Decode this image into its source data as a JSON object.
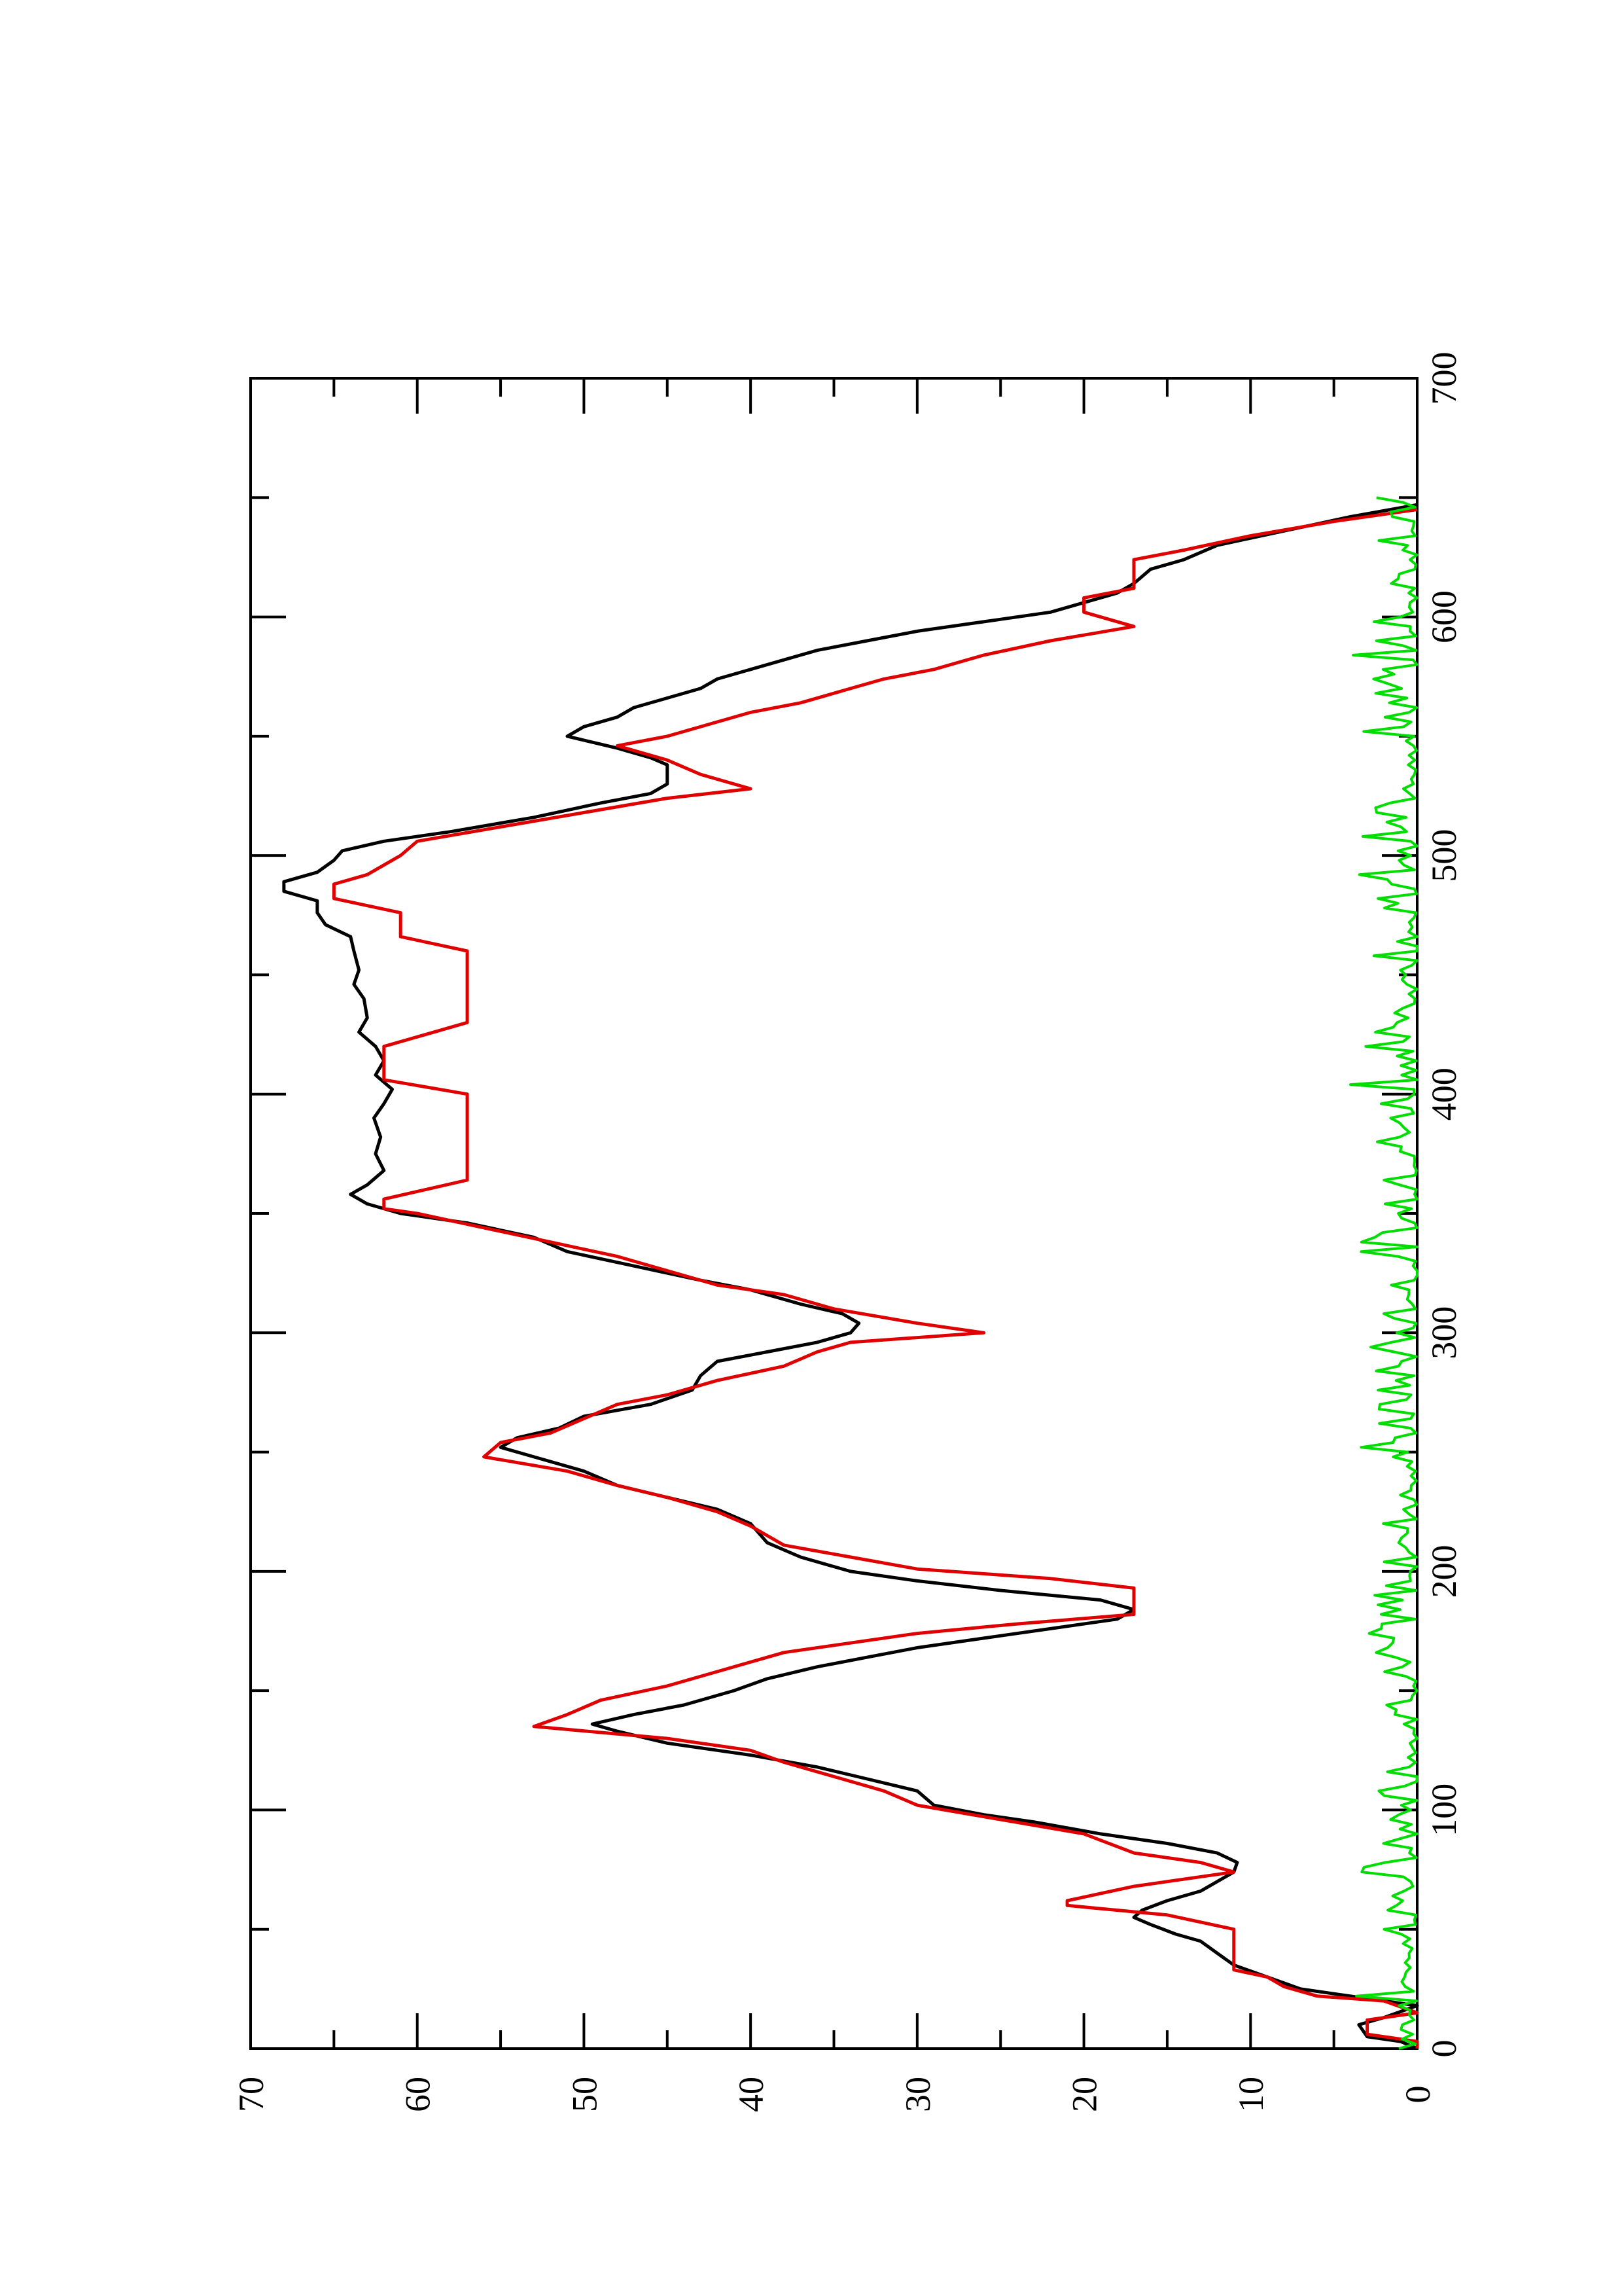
{
  "chart_data": {
    "type": "line",
    "title": "",
    "xlabel": "",
    "ylabel": "",
    "rotation_deg": 90,
    "xlim": [
      0,
      700
    ],
    "ylim": [
      0,
      70
    ],
    "x_ticks": [
      0,
      100,
      200,
      300,
      400,
      500,
      600,
      700
    ],
    "y_ticks": [
      0,
      10,
      20,
      30,
      40,
      50,
      60,
      70
    ],
    "x_minor_step": 50,
    "y_minor_step": 5,
    "grid": false,
    "legend": "none",
    "series": [
      {
        "color": "#000000",
        "style": "smooth",
        "points": [
          [
            0,
            0
          ],
          [
            3,
            1
          ],
          [
            5,
            3
          ],
          [
            10,
            3.5
          ],
          [
            13,
            2
          ],
          [
            18,
            0
          ],
          [
            22,
            4
          ],
          [
            25,
            7
          ],
          [
            30,
            9
          ],
          [
            35,
            11
          ],
          [
            40,
            12
          ],
          [
            45,
            13
          ],
          [
            48,
            14.5
          ],
          [
            52,
            16
          ],
          [
            55,
            17
          ],
          [
            58,
            16.5
          ],
          [
            62,
            15
          ],
          [
            66,
            13
          ],
          [
            70,
            12
          ],
          [
            74,
            11
          ],
          [
            78,
            10.8
          ],
          [
            82,
            12
          ],
          [
            86,
            15
          ],
          [
            90,
            19
          ],
          [
            95,
            23
          ],
          [
            98,
            26
          ],
          [
            102,
            29
          ],
          [
            108,
            30
          ],
          [
            113,
            33
          ],
          [
            118,
            36
          ],
          [
            123,
            40
          ],
          [
            128,
            45
          ],
          [
            133,
            48
          ],
          [
            136,
            49.5
          ],
          [
            140,
            47
          ],
          [
            144,
            44
          ],
          [
            150,
            41
          ],
          [
            155,
            39
          ],
          [
            160,
            36
          ],
          [
            164,
            33
          ],
          [
            168,
            30
          ],
          [
            172,
            26
          ],
          [
            176,
            22
          ],
          [
            180,
            18
          ],
          [
            184,
            17
          ],
          [
            188,
            19
          ],
          [
            192,
            25
          ],
          [
            196,
            30
          ],
          [
            200,
            34
          ],
          [
            206,
            37
          ],
          [
            212,
            39
          ],
          [
            220,
            40
          ],
          [
            226,
            42
          ],
          [
            231,
            45
          ],
          [
            236,
            48
          ],
          [
            242,
            50
          ],
          [
            248,
            53
          ],
          [
            252,
            55
          ],
          [
            256,
            54
          ],
          [
            260,
            51.5
          ],
          [
            265,
            50
          ],
          [
            270,
            46
          ],
          [
            276,
            43.5
          ],
          [
            282,
            43
          ],
          [
            288,
            42
          ],
          [
            292,
            39
          ],
          [
            296,
            36
          ],
          [
            300,
            34
          ],
          [
            304,
            33.5
          ],
          [
            308,
            34.5
          ],
          [
            312,
            37
          ],
          [
            318,
            40
          ],
          [
            322,
            43
          ],
          [
            328,
            47
          ],
          [
            334,
            51
          ],
          [
            340,
            53
          ],
          [
            346,
            57
          ],
          [
            350,
            61
          ],
          [
            354,
            63
          ],
          [
            358,
            64
          ],
          [
            362,
            63
          ],
          [
            368,
            62
          ],
          [
            375,
            62.5
          ],
          [
            382,
            62.2
          ],
          [
            390,
            62.6
          ],
          [
            396,
            62
          ],
          [
            402,
            61.5
          ],
          [
            408,
            62.5
          ],
          [
            414,
            62
          ],
          [
            420,
            62.5
          ],
          [
            426,
            63.5
          ],
          [
            432,
            63
          ],
          [
            440,
            63.2
          ],
          [
            446,
            63.8
          ],
          [
            452,
            63.5
          ],
          [
            460,
            63.8
          ],
          [
            466,
            64
          ],
          [
            471,
            65.5
          ],
          [
            476,
            66
          ],
          [
            481,
            66
          ],
          [
            485,
            68
          ],
          [
            489,
            68
          ],
          [
            493,
            66
          ],
          [
            498,
            65
          ],
          [
            502,
            64.5
          ],
          [
            506,
            62
          ],
          [
            510,
            58
          ],
          [
            516,
            53
          ],
          [
            522,
            49
          ],
          [
            526,
            46
          ],
          [
            530,
            45
          ],
          [
            538,
            45
          ],
          [
            541,
            46
          ],
          [
            545,
            48
          ],
          [
            550,
            51
          ],
          [
            554,
            50
          ],
          [
            558,
            48
          ],
          [
            562,
            47
          ],
          [
            566,
            45
          ],
          [
            570,
            43
          ],
          [
            574,
            42
          ],
          [
            578,
            40
          ],
          [
            582,
            38
          ],
          [
            586,
            36
          ],
          [
            590,
            33
          ],
          [
            594,
            30
          ],
          [
            598,
            26
          ],
          [
            602,
            22
          ],
          [
            606,
            20
          ],
          [
            610,
            18
          ],
          [
            614,
            17
          ],
          [
            620,
            16
          ],
          [
            624,
            14
          ],
          [
            630,
            12
          ],
          [
            636,
            8
          ],
          [
            642,
            4
          ],
          [
            647,
            0
          ]
        ]
      },
      {
        "color": "#e00000",
        "style": "steps",
        "points": [
          [
            0,
            0
          ],
          [
            3,
            0
          ],
          [
            6,
            3
          ],
          [
            12,
            3
          ],
          [
            15,
            0
          ],
          [
            20,
            2
          ],
          [
            22,
            6
          ],
          [
            26,
            8
          ],
          [
            30,
            9
          ],
          [
            33,
            11
          ],
          [
            50,
            11
          ],
          [
            56,
            15
          ],
          [
            60,
            21
          ],
          [
            62,
            21
          ],
          [
            68,
            17
          ],
          [
            74,
            11
          ],
          [
            78,
            13
          ],
          [
            82,
            17
          ],
          [
            90,
            20
          ],
          [
            96,
            25
          ],
          [
            102,
            30
          ],
          [
            108,
            32
          ],
          [
            114,
            35
          ],
          [
            120,
            38
          ],
          [
            125,
            40
          ],
          [
            130,
            45
          ],
          [
            135,
            53
          ],
          [
            140,
            51
          ],
          [
            146,
            49
          ],
          [
            152,
            45
          ],
          [
            158,
            42
          ],
          [
            162,
            40
          ],
          [
            166,
            38
          ],
          [
            170,
            34
          ],
          [
            174,
            30
          ],
          [
            178,
            24
          ],
          [
            182,
            17
          ],
          [
            193,
            17
          ],
          [
            197,
            22
          ],
          [
            201,
            30
          ],
          [
            206,
            34
          ],
          [
            211,
            38
          ],
          [
            219,
            40
          ],
          [
            225,
            42
          ],
          [
            231,
            45
          ],
          [
            236,
            48
          ],
          [
            242,
            51
          ],
          [
            248,
            56
          ],
          [
            254,
            55
          ],
          [
            258,
            52
          ],
          [
            264,
            50
          ],
          [
            270,
            48
          ],
          [
            274,
            45
          ],
          [
            280,
            42
          ],
          [
            286,
            38
          ],
          [
            292,
            36
          ],
          [
            296,
            34
          ],
          [
            300,
            26
          ],
          [
            304,
            30
          ],
          [
            310,
            35
          ],
          [
            316,
            38
          ],
          [
            320,
            42
          ],
          [
            326,
            45
          ],
          [
            332,
            48
          ],
          [
            338,
            52
          ],
          [
            344,
            56
          ],
          [
            350,
            60
          ],
          [
            352,
            62
          ],
          [
            356,
            62
          ],
          [
            364,
            57
          ],
          [
            400,
            57
          ],
          [
            406,
            62
          ],
          [
            420,
            62
          ],
          [
            430,
            57
          ],
          [
            460,
            57
          ],
          [
            466,
            61
          ],
          [
            476,
            61
          ],
          [
            482,
            65
          ],
          [
            488,
            65
          ],
          [
            492,
            63
          ],
          [
            500,
            61
          ],
          [
            506,
            60
          ],
          [
            512,
            55
          ],
          [
            518,
            50
          ],
          [
            524,
            45
          ],
          [
            528,
            40
          ],
          [
            534,
            43
          ],
          [
            540,
            45
          ],
          [
            546,
            48
          ],
          [
            550,
            45
          ],
          [
            556,
            42
          ],
          [
            560,
            40
          ],
          [
            564,
            37
          ],
          [
            570,
            34
          ],
          [
            574,
            32
          ],
          [
            578,
            29
          ],
          [
            584,
            26
          ],
          [
            590,
            22
          ],
          [
            596,
            17
          ],
          [
            602,
            20
          ],
          [
            608,
            20
          ],
          [
            612,
            17
          ],
          [
            624,
            17
          ],
          [
            628,
            14
          ],
          [
            634,
            10
          ],
          [
            640,
            5
          ],
          [
            645,
            0
          ]
        ]
      },
      {
        "color": "#00dd00",
        "style": "noise",
        "x_range": [
          0,
          650
        ],
        "step": 2,
        "max": 4,
        "points": [
          [
            404,
            4
          ]
        ]
      }
    ]
  }
}
